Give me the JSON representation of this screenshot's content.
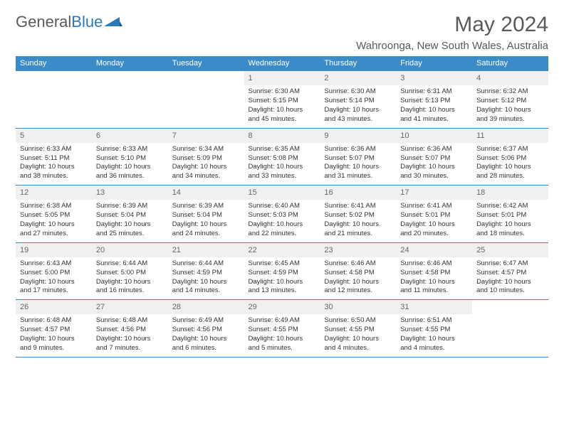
{
  "logo": {
    "word1": "General",
    "word2": "Blue"
  },
  "title": "May 2024",
  "location": "Wahroonga, New South Wales, Australia",
  "colors": {
    "accent": "#3b8bc9",
    "header_bg": "#3b8bc9",
    "header_text": "#ffffff",
    "daynum_bg": "#f0f0f0",
    "text": "#333333",
    "muted": "#5a5a5a"
  },
  "weekdays": [
    "Sunday",
    "Monday",
    "Tuesday",
    "Wednesday",
    "Thursday",
    "Friday",
    "Saturday"
  ],
  "weeks": [
    [
      null,
      null,
      null,
      {
        "n": "1",
        "sunrise": "6:30 AM",
        "sunset": "5:15 PM",
        "daylight": "10 hours and 45 minutes."
      },
      {
        "n": "2",
        "sunrise": "6:30 AM",
        "sunset": "5:14 PM",
        "daylight": "10 hours and 43 minutes."
      },
      {
        "n": "3",
        "sunrise": "6:31 AM",
        "sunset": "5:13 PM",
        "daylight": "10 hours and 41 minutes."
      },
      {
        "n": "4",
        "sunrise": "6:32 AM",
        "sunset": "5:12 PM",
        "daylight": "10 hours and 39 minutes."
      }
    ],
    [
      {
        "n": "5",
        "sunrise": "6:33 AM",
        "sunset": "5:11 PM",
        "daylight": "10 hours and 38 minutes."
      },
      {
        "n": "6",
        "sunrise": "6:33 AM",
        "sunset": "5:10 PM",
        "daylight": "10 hours and 36 minutes."
      },
      {
        "n": "7",
        "sunrise": "6:34 AM",
        "sunset": "5:09 PM",
        "daylight": "10 hours and 34 minutes."
      },
      {
        "n": "8",
        "sunrise": "6:35 AM",
        "sunset": "5:08 PM",
        "daylight": "10 hours and 33 minutes."
      },
      {
        "n": "9",
        "sunrise": "6:36 AM",
        "sunset": "5:07 PM",
        "daylight": "10 hours and 31 minutes."
      },
      {
        "n": "10",
        "sunrise": "6:36 AM",
        "sunset": "5:07 PM",
        "daylight": "10 hours and 30 minutes."
      },
      {
        "n": "11",
        "sunrise": "6:37 AM",
        "sunset": "5:06 PM",
        "daylight": "10 hours and 28 minutes."
      }
    ],
    [
      {
        "n": "12",
        "sunrise": "6:38 AM",
        "sunset": "5:05 PM",
        "daylight": "10 hours and 27 minutes."
      },
      {
        "n": "13",
        "sunrise": "6:39 AM",
        "sunset": "5:04 PM",
        "daylight": "10 hours and 25 minutes."
      },
      {
        "n": "14",
        "sunrise": "6:39 AM",
        "sunset": "5:04 PM",
        "daylight": "10 hours and 24 minutes."
      },
      {
        "n": "15",
        "sunrise": "6:40 AM",
        "sunset": "5:03 PM",
        "daylight": "10 hours and 22 minutes."
      },
      {
        "n": "16",
        "sunrise": "6:41 AM",
        "sunset": "5:02 PM",
        "daylight": "10 hours and 21 minutes."
      },
      {
        "n": "17",
        "sunrise": "6:41 AM",
        "sunset": "5:01 PM",
        "daylight": "10 hours and 20 minutes."
      },
      {
        "n": "18",
        "sunrise": "6:42 AM",
        "sunset": "5:01 PM",
        "daylight": "10 hours and 18 minutes."
      }
    ],
    [
      {
        "n": "19",
        "sunrise": "6:43 AM",
        "sunset": "5:00 PM",
        "daylight": "10 hours and 17 minutes."
      },
      {
        "n": "20",
        "sunrise": "6:44 AM",
        "sunset": "5:00 PM",
        "daylight": "10 hours and 16 minutes."
      },
      {
        "n": "21",
        "sunrise": "6:44 AM",
        "sunset": "4:59 PM",
        "daylight": "10 hours and 14 minutes."
      },
      {
        "n": "22",
        "sunrise": "6:45 AM",
        "sunset": "4:59 PM",
        "daylight": "10 hours and 13 minutes."
      },
      {
        "n": "23",
        "sunrise": "6:46 AM",
        "sunset": "4:58 PM",
        "daylight": "10 hours and 12 minutes."
      },
      {
        "n": "24",
        "sunrise": "6:46 AM",
        "sunset": "4:58 PM",
        "daylight": "10 hours and 11 minutes."
      },
      {
        "n": "25",
        "sunrise": "6:47 AM",
        "sunset": "4:57 PM",
        "daylight": "10 hours and 10 minutes."
      }
    ],
    [
      {
        "n": "26",
        "sunrise": "6:48 AM",
        "sunset": "4:57 PM",
        "daylight": "10 hours and 9 minutes."
      },
      {
        "n": "27",
        "sunrise": "6:48 AM",
        "sunset": "4:56 PM",
        "daylight": "10 hours and 7 minutes."
      },
      {
        "n": "28",
        "sunrise": "6:49 AM",
        "sunset": "4:56 PM",
        "daylight": "10 hours and 6 minutes."
      },
      {
        "n": "29",
        "sunrise": "6:49 AM",
        "sunset": "4:55 PM",
        "daylight": "10 hours and 5 minutes."
      },
      {
        "n": "30",
        "sunrise": "6:50 AM",
        "sunset": "4:55 PM",
        "daylight": "10 hours and 4 minutes."
      },
      {
        "n": "31",
        "sunrise": "6:51 AM",
        "sunset": "4:55 PM",
        "daylight": "10 hours and 4 minutes."
      },
      null
    ]
  ],
  "labels": {
    "sunrise": "Sunrise:",
    "sunset": "Sunset:",
    "daylight": "Daylight:"
  }
}
